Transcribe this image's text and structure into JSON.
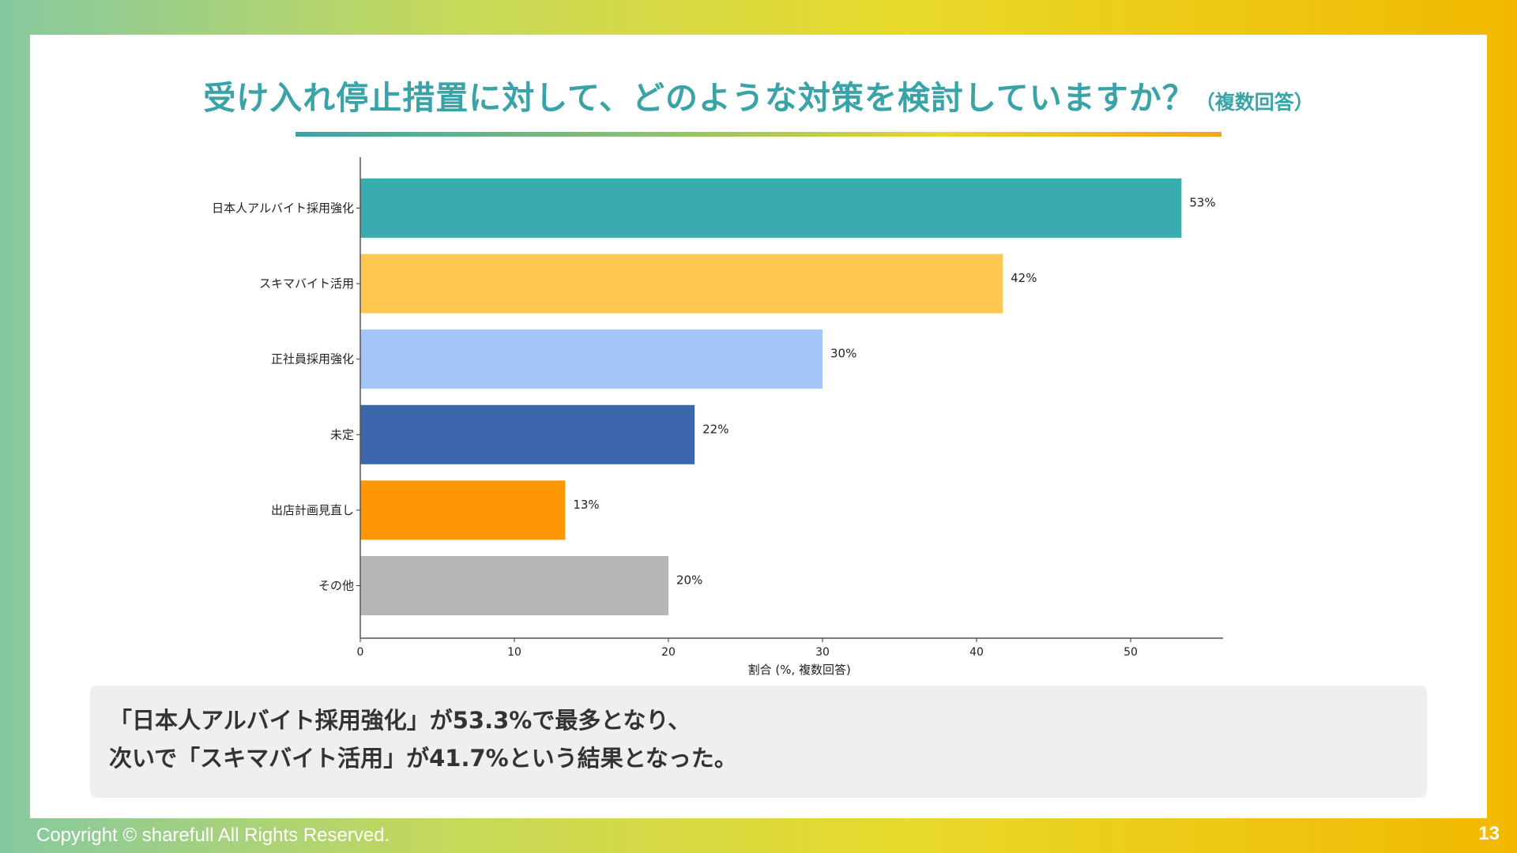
{
  "title": {
    "main": "受け入れ停止措置に対して、どのような対策を検討していますか？",
    "sub": "（複数回答）"
  },
  "chart_data": {
    "type": "bar",
    "orientation": "horizontal",
    "categories": [
      "日本人アルバイト採用強化",
      "スキマバイト活用",
      "正社員採用強化",
      "未定",
      "出店計画見直し",
      "その他"
    ],
    "values": [
      53.3,
      41.7,
      30.0,
      21.7,
      13.3,
      20.0
    ],
    "value_labels": [
      "53%",
      "42%",
      "30%",
      "22%",
      "13%",
      "20%"
    ],
    "colors": [
      "#3aabaf",
      "#fec752",
      "#a3c5f8",
      "#3c66ab",
      "#fe9705",
      "#b6b6b6"
    ],
    "xlabel": "割合 (%, 複数回答)",
    "xlim": [
      0,
      56
    ],
    "xticks": [
      0,
      10,
      20,
      30,
      40,
      50
    ],
    "grid": false
  },
  "summary": {
    "line1": "「日本人アルバイト採用強化」が53.3%で最多となり、",
    "line2": "次いで「スキマバイト活用」が41.7%という結果となった。"
  },
  "footer": {
    "copyright": "Copyright © sharefull All Rights Reserved.",
    "page_number": "13"
  }
}
